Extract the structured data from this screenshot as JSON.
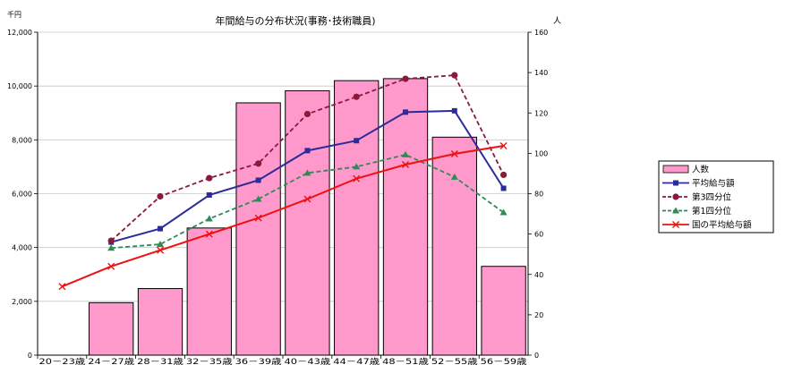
{
  "chart_data": {
    "type": "bar",
    "title": "年間給与の分布状況(事務･技術職員)",
    "left_axis": {
      "unit": "千円",
      "ylim": [
        0,
        12000
      ],
      "ticks": [
        "0",
        "2,000",
        "4,000",
        "6,000",
        "8,000",
        "10,000",
        "12,000"
      ]
    },
    "right_axis": {
      "unit": "人",
      "ylim": [
        0,
        160
      ],
      "ticks": [
        "0",
        "20",
        "40",
        "60",
        "80",
        "100",
        "120",
        "140",
        "160"
      ]
    },
    "categories": [
      "20－23歳",
      "24－27歳",
      "28－31歳",
      "32－35歳",
      "36－39歳",
      "40－43歳",
      "44－47歳",
      "48－51歳",
      "52－55歳",
      "56－59歳"
    ],
    "grid": true,
    "legend_position": "right",
    "series": [
      {
        "name": "人数",
        "kind": "bar",
        "axis": "right",
        "color": "#ff99cc",
        "values": [
          0,
          26,
          33,
          63,
          125,
          131,
          136,
          137,
          108,
          44
        ]
      },
      {
        "name": "平均給与額",
        "kind": "line",
        "axis": "left",
        "color": "#2b2b99",
        "marker": "square",
        "dash": "solid",
        "values": [
          null,
          4200,
          4700,
          5950,
          6500,
          7600,
          7970,
          9030,
          9080,
          6200
        ]
      },
      {
        "name": "第3四分位",
        "kind": "line",
        "axis": "left",
        "color": "#8b1a3a",
        "marker": "circle",
        "dash": "dashed",
        "values": [
          null,
          4250,
          5900,
          6580,
          7120,
          8960,
          9600,
          10270,
          10400,
          6700
        ]
      },
      {
        "name": "第1四分位",
        "kind": "line",
        "axis": "left",
        "color": "#2e8b57",
        "marker": "triangle",
        "dash": "dashed",
        "values": [
          null,
          3980,
          4120,
          5070,
          5800,
          6770,
          7000,
          7450,
          6620,
          5300
        ]
      },
      {
        "name": "国の平均給与額",
        "kind": "line",
        "axis": "left",
        "color": "#ee1111",
        "marker": "x",
        "dash": "solid",
        "values": [
          2550,
          3300,
          3900,
          4500,
          5100,
          5800,
          6560,
          7080,
          7480,
          7780
        ]
      }
    ]
  }
}
